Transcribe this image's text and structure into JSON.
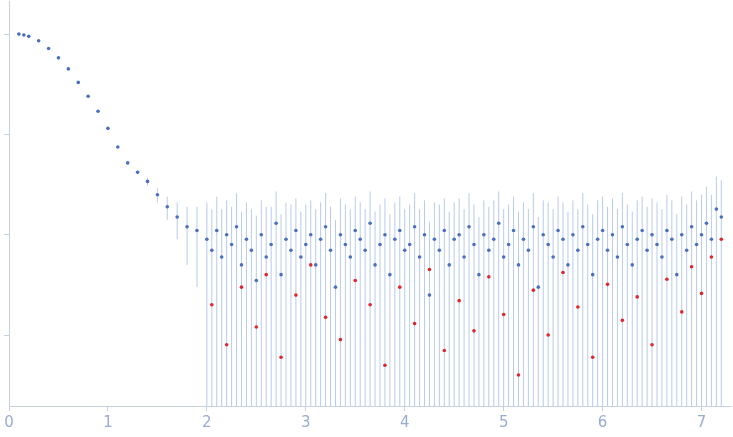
{
  "chart_data": {
    "type": "scatter",
    "log": "y",
    "grid": false,
    "tick_labels": "x",
    "xlim": [
      0,
      7.3
    ],
    "xticks": [
      0,
      1,
      2,
      3,
      4,
      5,
      6,
      7
    ],
    "ylim": [
      0.000196,
      2.1
    ],
    "yticks": [
      0.001,
      0.01,
      0.1,
      1
    ],
    "series": [
      {
        "color": "#4a6fc0",
        "marker": "circle",
        "x": [
          0.1,
          0.15,
          0.2,
          0.3,
          0.4,
          0.5,
          0.6,
          0.7,
          0.8,
          0.9,
          1.0,
          1.1,
          1.2,
          1.3,
          1.4,
          1.5,
          1.6,
          1.7,
          1.8,
          1.9,
          2.0,
          2.05,
          2.1,
          2.15,
          2.2,
          2.25,
          2.3,
          2.35,
          2.4,
          2.45,
          2.5,
          2.55,
          2.6,
          2.65,
          2.7,
          2.75,
          2.8,
          2.85,
          2.9,
          2.95,
          3.0,
          3.05,
          3.1,
          3.15,
          3.2,
          3.25,
          3.3,
          3.35,
          3.4,
          3.45,
          3.5,
          3.55,
          3.6,
          3.65,
          3.7,
          3.75,
          3.8,
          3.85,
          3.9,
          3.95,
          4.0,
          4.05,
          4.1,
          4.15,
          4.2,
          4.25,
          4.3,
          4.35,
          4.4,
          4.45,
          4.5,
          4.55,
          4.6,
          4.65,
          4.7,
          4.75,
          4.8,
          4.85,
          4.9,
          4.95,
          5.0,
          5.05,
          5.1,
          5.15,
          5.2,
          5.25,
          5.3,
          5.35,
          5.4,
          5.45,
          5.5,
          5.55,
          5.6,
          5.65,
          5.7,
          5.75,
          5.8,
          5.85,
          5.9,
          5.95,
          6.0,
          6.05,
          6.1,
          6.15,
          6.2,
          6.25,
          6.3,
          6.35,
          6.4,
          6.45,
          6.5,
          6.55,
          6.6,
          6.65,
          6.7,
          6.75,
          6.8,
          6.85,
          6.9,
          6.95,
          7.0,
          7.05,
          7.1,
          7.15,
          7.2
        ],
        "values": [
          1.0,
          0.98,
          0.95,
          0.86,
          0.72,
          0.58,
          0.45,
          0.33,
          0.24,
          0.17,
          0.115,
          0.075,
          0.052,
          0.042,
          0.034,
          0.025,
          0.019,
          0.015,
          0.012,
          0.011,
          0.009,
          0.007,
          0.011,
          0.006,
          0.01,
          0.008,
          0.012,
          0.005,
          0.009,
          0.007,
          0.0035,
          0.01,
          0.006,
          0.008,
          0.013,
          0.004,
          0.009,
          0.007,
          0.011,
          0.006,
          0.008,
          0.01,
          0.005,
          0.009,
          0.012,
          0.007,
          0.003,
          0.01,
          0.008,
          0.006,
          0.011,
          0.009,
          0.007,
          0.013,
          0.005,
          0.008,
          0.01,
          0.004,
          0.009,
          0.011,
          0.007,
          0.008,
          0.012,
          0.006,
          0.01,
          0.0025,
          0.009,
          0.007,
          0.011,
          0.005,
          0.009,
          0.01,
          0.006,
          0.012,
          0.008,
          0.004,
          0.01,
          0.007,
          0.009,
          0.013,
          0.006,
          0.008,
          0.011,
          0.005,
          0.009,
          0.007,
          0.012,
          0.003,
          0.01,
          0.008,
          0.006,
          0.011,
          0.009,
          0.005,
          0.01,
          0.007,
          0.012,
          0.008,
          0.004,
          0.009,
          0.011,
          0.007,
          0.01,
          0.006,
          0.012,
          0.008,
          0.005,
          0.009,
          0.011,
          0.007,
          0.01,
          0.008,
          0.006,
          0.011,
          0.009,
          0.004,
          0.01,
          0.007,
          0.012,
          0.008,
          0.01,
          0.013,
          0.009,
          0.018,
          0.015
        ],
        "errors": [
          0.01,
          0.01,
          0.01,
          0.009,
          0.007,
          0.006,
          0.005,
          0.004,
          0.003,
          0.003,
          0.002,
          0.002,
          0.002,
          0.002,
          0.003,
          0.004,
          0.005,
          0.006,
          0.007,
          0.008,
          0.012,
          0.011,
          0.013,
          0.012,
          0.012,
          0.011,
          0.014,
          0.012,
          0.012,
          0.011,
          0.012,
          0.012,
          0.013,
          0.011,
          0.014,
          0.012,
          0.012,
          0.013,
          0.012,
          0.011,
          0.012,
          0.012,
          0.013,
          0.012,
          0.014,
          0.012,
          0.011,
          0.013,
          0.012,
          0.012,
          0.013,
          0.012,
          0.011,
          0.014,
          0.012,
          0.012,
          0.013,
          0.012,
          0.012,
          0.013,
          0.011,
          0.012,
          0.014,
          0.012,
          0.012,
          0.011,
          0.012,
          0.013,
          0.012,
          0.012,
          0.012,
          0.013,
          0.012,
          0.014,
          0.012,
          0.011,
          0.012,
          0.012,
          0.013,
          0.014,
          0.012,
          0.012,
          0.013,
          0.012,
          0.012,
          0.011,
          0.014,
          0.012,
          0.012,
          0.013,
          0.012,
          0.013,
          0.012,
          0.012,
          0.012,
          0.011,
          0.014,
          0.012,
          0.012,
          0.013,
          0.013,
          0.012,
          0.013,
          0.012,
          0.014,
          0.012,
          0.012,
          0.013,
          0.013,
          0.012,
          0.013,
          0.013,
          0.012,
          0.014,
          0.013,
          0.012,
          0.014,
          0.013,
          0.015,
          0.014,
          0.015,
          0.017,
          0.016,
          0.02,
          0.02
        ]
      },
      {
        "color": "#e0262b",
        "marker": "circle",
        "x": [
          2.05,
          2.2,
          2.35,
          2.5,
          2.6,
          2.75,
          2.9,
          3.05,
          3.2,
          3.35,
          3.5,
          3.65,
          3.8,
          3.95,
          4.1,
          4.25,
          4.4,
          4.55,
          4.7,
          4.85,
          5.0,
          5.15,
          5.3,
          5.45,
          5.6,
          5.75,
          5.9,
          6.05,
          6.2,
          6.35,
          6.5,
          6.65,
          6.8,
          6.9,
          7.0,
          7.1,
          7.2
        ],
        "values": [
          0.002,
          0.0008,
          0.003,
          0.0012,
          0.004,
          0.0006,
          0.0025,
          0.005,
          0.0015,
          0.0009,
          0.0035,
          0.002,
          0.0005,
          0.003,
          0.0013,
          0.0045,
          0.0007,
          0.0022,
          0.0011,
          0.0038,
          0.0016,
          0.0004,
          0.0028,
          0.001,
          0.0042,
          0.0019,
          0.0006,
          0.0032,
          0.0014,
          0.0024,
          0.0008,
          0.0036,
          0.0017,
          0.0048,
          0.0026,
          0.006,
          0.009
        ]
      }
    ]
  }
}
